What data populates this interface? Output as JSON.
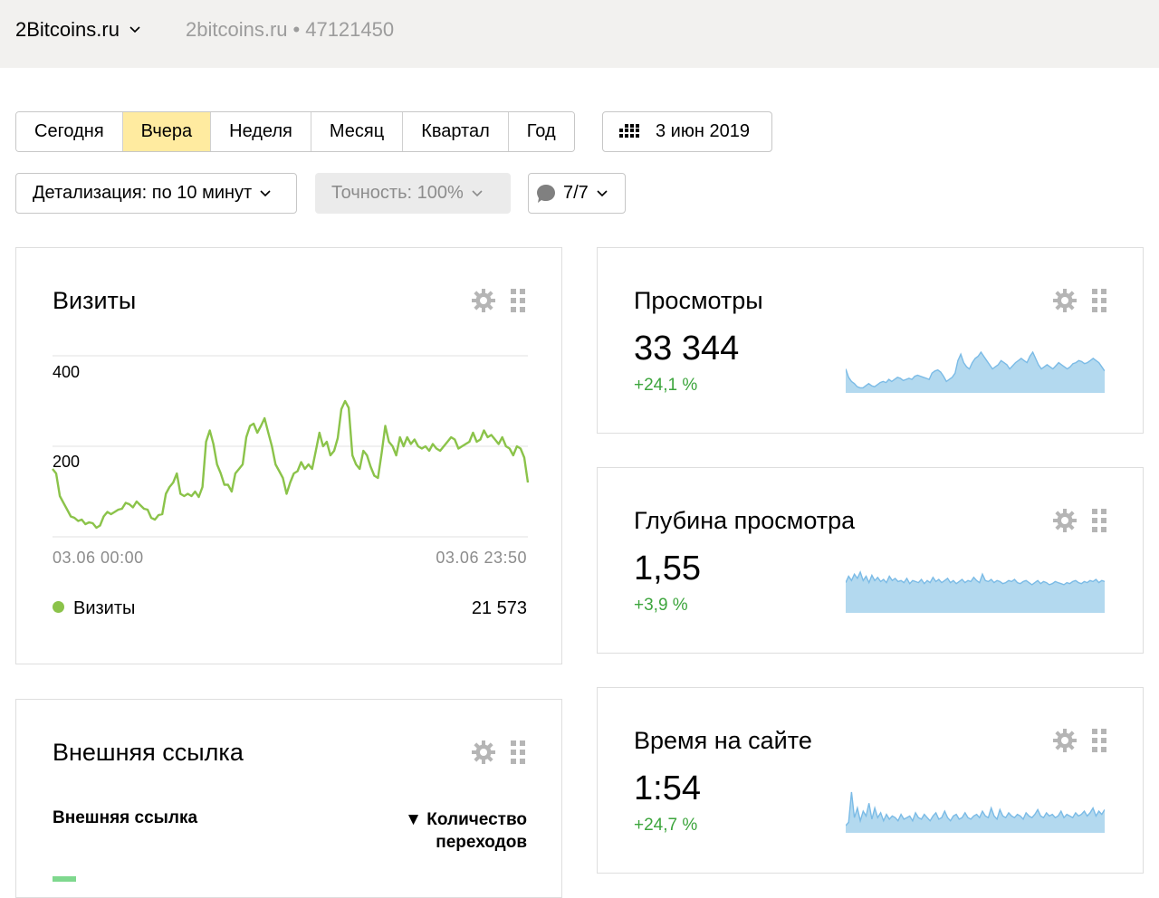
{
  "header": {
    "site_name": "2Bitcoins.ru",
    "site_domain": "2bitcoins.ru",
    "separator": "•",
    "counter_id": "47121450"
  },
  "period": {
    "buttons": [
      "Сегодня",
      "Вчера",
      "Неделя",
      "Месяц",
      "Квартал",
      "Год"
    ],
    "active_index": 1,
    "date_label": "3 июн 2019"
  },
  "controls": {
    "detail_label": "Детализация: по 10 минут",
    "accuracy_label": "Точность: 100%",
    "segments_label": "7/7"
  },
  "visits_widget": {
    "title": "Визиты",
    "y_ticks": [
      "400",
      "200"
    ],
    "x_start": "03.06 00:00",
    "x_end": "03.06 23:50",
    "legend_name": "Визиты",
    "legend_total": "21 573",
    "series_color": "#8bc34a"
  },
  "chart_data": {
    "type": "line",
    "ylim": [
      0,
      400
    ],
    "x_start": "03.06 00:00",
    "x_end": "03.06 23:50",
    "series": [
      {
        "name": "Визиты",
        "values": [
          150,
          140,
          90,
          75,
          60,
          45,
          42,
          35,
          38,
          28,
          32,
          30,
          20,
          25,
          45,
          55,
          50,
          55,
          60,
          62,
          75,
          72,
          65,
          78,
          70,
          62,
          60,
          42,
          38,
          48,
          50,
          95,
          110,
          120,
          140,
          95,
          90,
          95,
          90,
          100,
          88,
          110,
          210,
          235,
          205,
          160,
          140,
          115,
          115,
          100,
          140,
          150,
          160,
          220,
          245,
          250,
          230,
          245,
          262,
          230,
          200,
          160,
          145,
          130,
          95,
          120,
          140,
          145,
          165,
          150,
          160,
          150,
          190,
          230,
          200,
          210,
          180,
          190,
          218,
          282,
          300,
          285,
          180,
          160,
          150,
          190,
          180,
          155,
          135,
          130,
          185,
          245,
          210,
          200,
          180,
          220,
          200,
          220,
          205,
          215,
          200,
          195,
          200,
          190,
          205,
          195,
          190,
          200,
          210,
          220,
          215,
          195,
          200,
          205,
          210,
          230,
          210,
          215,
          235,
          220,
          225,
          215,
          205,
          220,
          200,
          195,
          180,
          200,
          195,
          175,
          120
        ]
      }
    ]
  },
  "views_widget": {
    "title": "Просмотры",
    "value": "33 344",
    "delta": "+24,1 %",
    "spark_color": "#7bbbe6",
    "spark": [
      22,
      14,
      10,
      8,
      5,
      4,
      4,
      6,
      8,
      6,
      5,
      7,
      9,
      10,
      9,
      12,
      10,
      12,
      14,
      13,
      11,
      12,
      13,
      12,
      15,
      16,
      15,
      14,
      13,
      12,
      18,
      20,
      21,
      19,
      15,
      10,
      12,
      14,
      18,
      30,
      36,
      28,
      24,
      22,
      28,
      32,
      34,
      38,
      34,
      30,
      26,
      22,
      24,
      26,
      30,
      28,
      26,
      22,
      25,
      28,
      30,
      32,
      30,
      28,
      34,
      38,
      32,
      26,
      22,
      24,
      26,
      24,
      22,
      25,
      28,
      26,
      24,
      22,
      24,
      27,
      28,
      30,
      29,
      27,
      28,
      30,
      32,
      30,
      28,
      24,
      20
    ]
  },
  "depth_widget": {
    "title": "Глубина просмотра",
    "value": "1,55",
    "delta": "+3,9 %",
    "spark_color": "#7bbbe6",
    "spark": [
      28,
      34,
      30,
      36,
      32,
      38,
      30,
      34,
      28,
      35,
      30,
      33,
      29,
      31,
      28,
      34,
      30,
      32,
      29,
      30,
      28,
      32,
      27,
      30,
      29,
      28,
      31,
      27,
      30,
      28,
      33,
      29,
      31,
      28,
      30,
      32,
      28,
      30,
      27,
      29,
      31,
      28,
      30,
      29,
      33,
      30,
      28,
      36,
      30,
      29,
      31,
      28,
      30,
      29,
      27,
      28,
      30,
      29,
      31,
      28,
      27,
      29,
      30,
      28,
      26,
      28,
      30,
      27,
      29,
      28,
      26,
      27,
      29,
      28,
      27,
      26,
      28,
      27,
      29,
      30,
      28,
      27,
      29,
      28,
      30,
      29,
      31,
      28,
      30,
      29
    ]
  },
  "time_widget": {
    "title": "Время на сайте",
    "value": "1:54",
    "delta": "+24,7 %",
    "spark_color": "#7bbbe6",
    "spark": [
      8,
      12,
      50,
      18,
      30,
      14,
      26,
      20,
      36,
      16,
      30,
      18,
      24,
      14,
      22,
      16,
      20,
      18,
      14,
      22,
      16,
      18,
      20,
      14,
      24,
      18,
      16,
      22,
      18,
      14,
      20,
      24,
      16,
      18,
      26,
      18,
      14,
      20,
      22,
      16,
      18,
      24,
      18,
      16,
      20,
      22,
      18,
      26,
      20,
      18,
      30,
      20,
      16,
      28,
      20,
      18,
      24,
      20,
      18,
      22,
      20,
      16,
      24,
      20,
      18,
      22,
      28,
      20,
      18,
      24,
      20,
      22,
      18,
      20,
      26,
      18,
      22,
      20,
      18,
      24,
      20,
      22,
      26,
      20,
      24,
      30,
      20,
      26,
      22,
      28
    ]
  },
  "links_widget": {
    "title": "Внешняя ссылка",
    "col_left": "Внешняя ссылка",
    "col_right_arrow": "▼",
    "col_right_line1": "Количество",
    "col_right_line2": "переходов",
    "row_color": "#7fd88e"
  }
}
